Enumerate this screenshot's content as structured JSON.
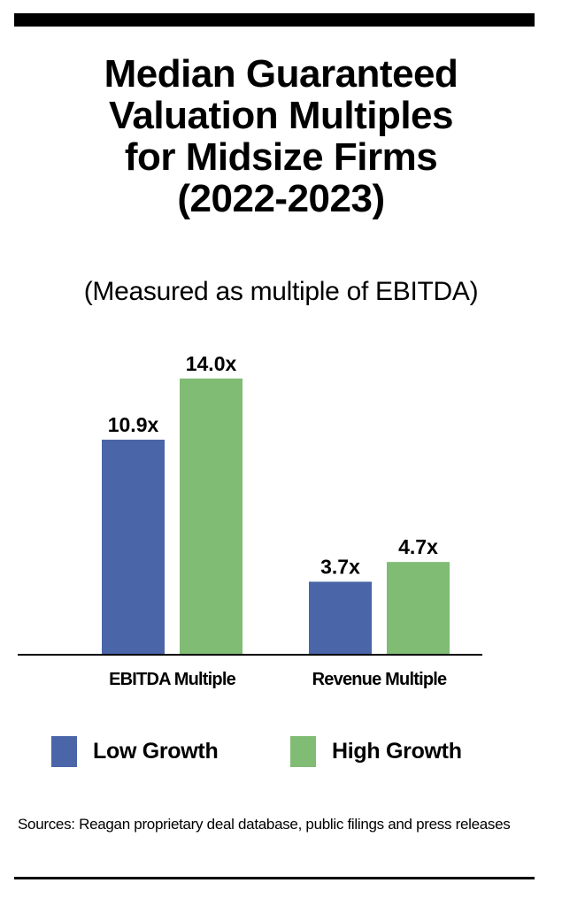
{
  "title_lines": [
    "Median Guaranteed",
    "Valuation Multiples",
    "for Midsize Firms",
    "(2022-2023)"
  ],
  "subtitle": "(Measured as multiple of EBITDA)",
  "sources": "Sources: Reagan proprietary deal database, public filings and press releases",
  "colors": {
    "low_growth": "#4A66A8",
    "high_growth": "#80BC74",
    "text": "#000000"
  },
  "chart_data": {
    "type": "bar",
    "title": "Median Guaranteed Valuation Multiples for Midsize Firms (2022-2023)",
    "subtitle": "(Measured as multiple of EBITDA)",
    "categories": [
      "EBITDA Multiple",
      "Revenue Multiple"
    ],
    "series": [
      {
        "name": "Low Growth",
        "values": [
          10.9,
          3.7
        ],
        "labels": [
          "10.9x",
          "3.7x"
        ]
      },
      {
        "name": "High Growth",
        "values": [
          14.0,
          4.7
        ],
        "labels": [
          "14.0x",
          "4.7x"
        ]
      }
    ],
    "xlabel": "",
    "ylabel": "",
    "ylim": [
      0,
      14.0
    ],
    "grid": false,
    "legend": "bottom"
  }
}
